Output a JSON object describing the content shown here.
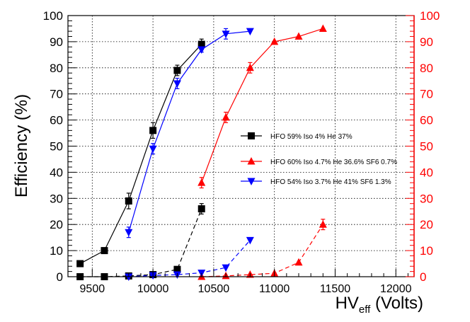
{
  "chart_data": {
    "type": "scatter",
    "title": "",
    "xlabel": "HV",
    "xlabel_sub": "eff",
    "xlabel_suffix": " (Volts)",
    "ylabel": "Efficiency (%)",
    "xlim": [
      9300,
      12150
    ],
    "ylim": [
      0,
      100
    ],
    "xticks": [
      9500,
      10000,
      10500,
      11000,
      11500,
      12000
    ],
    "yticks": [
      0,
      10,
      20,
      30,
      40,
      50,
      60,
      70,
      80,
      90,
      100
    ],
    "right_axis": {
      "range": [
        0,
        100
      ],
      "color": "#ff0000"
    },
    "grid": true,
    "legend_position": "center-right",
    "series": [
      {
        "name": "HFO 59% Iso 4% He 37%",
        "color": "#000000",
        "marker": "square",
        "efficiency": {
          "x": [
            9400,
            9600,
            9800,
            10000,
            10200,
            10400
          ],
          "y": [
            5,
            10,
            29,
            56,
            79,
            89
          ],
          "err": [
            0,
            0,
            3,
            3,
            2,
            2
          ]
        },
        "cluster": {
          "x": [
            9400,
            9600,
            9800,
            10000,
            10200,
            10400
          ],
          "y": [
            0,
            0,
            0.3,
            0.8,
            2.8,
            26
          ],
          "err": [
            0,
            0,
            0,
            0,
            0,
            2
          ]
        }
      },
      {
        "name": "HFO 60% Iso 4.7% He 36.6%  SF6 0.7%",
        "color": "#ff0000",
        "marker": "triangle-up",
        "efficiency": {
          "x": [
            10400,
            10600,
            10800,
            11000,
            11200,
            11400
          ],
          "y": [
            36,
            61,
            80,
            90,
            92,
            95
          ],
          "err": [
            2,
            2,
            2,
            0,
            0,
            0
          ]
        },
        "cluster": {
          "x": [
            10400,
            10600,
            10800,
            11000,
            11200,
            11400
          ],
          "y": [
            0,
            0.3,
            0.8,
            1.3,
            5.5,
            20
          ],
          "err": [
            0,
            0,
            0,
            0,
            0,
            2
          ]
        }
      },
      {
        "name": "HFO 54% Iso 3.7% He 41%  SF6 1.3%",
        "color": "#0000ff",
        "marker": "triangle-down",
        "efficiency": {
          "x": [
            9800,
            10000,
            10200,
            10400,
            10600,
            10800
          ],
          "y": [
            17,
            49,
            74,
            87,
            93,
            94
          ],
          "err": [
            2,
            2,
            2,
            1,
            2,
            0
          ]
        },
        "cluster": {
          "x": [
            9800,
            10000,
            10200,
            10400,
            10600,
            10800
          ],
          "y": [
            0,
            0.5,
            0.8,
            1.5,
            3.5,
            14
          ],
          "err": [
            0,
            0,
            0,
            0,
            0,
            0
          ]
        }
      }
    ]
  }
}
